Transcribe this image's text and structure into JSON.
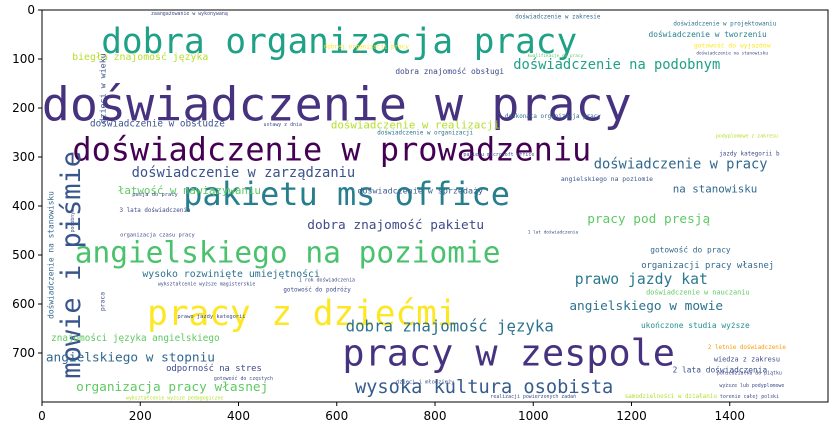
{
  "chart_data": {
    "type": "wordcloud",
    "xlim": [
      0,
      1600
    ],
    "ylim": [
      800,
      0
    ],
    "x_ticks": [
      0,
      200,
      400,
      600,
      800,
      1000,
      1200,
      1400
    ],
    "y_ticks": [
      0,
      100,
      200,
      300,
      400,
      500,
      600,
      700
    ],
    "x_tick_labels": [
      "0",
      "200",
      "400",
      "600",
      "800",
      "1000",
      "1200",
      "1400"
    ],
    "y_tick_labels": [
      "0",
      "100",
      "200",
      "300",
      "400",
      "500",
      "600",
      "700"
    ],
    "grid": false,
    "colormap": "viridis",
    "words": [
      {
        "text": "doświadczenie w pracy",
        "x": 600,
        "y": 195,
        "size": 95,
        "color": "#46327e",
        "rotate": 0
      },
      {
        "text": "dobra organizacja pracy",
        "x": 605,
        "y": 65,
        "size": 70,
        "color": "#1fa187",
        "rotate": 0
      },
      {
        "text": "doświadczenie w prowadzeniu",
        "x": 590,
        "y": 285,
        "size": 65,
        "color": "#440154",
        "rotate": 0
      },
      {
        "text": "pakietu ms office",
        "x": 620,
        "y": 375,
        "size": 65,
        "color": "#277f8e",
        "rotate": 0
      },
      {
        "text": "angielskiego na poziomie",
        "x": 500,
        "y": 495,
        "size": 60,
        "color": "#4ac16d",
        "rotate": 0
      },
      {
        "text": "pracy z dziećmi",
        "x": 530,
        "y": 620,
        "size": 70,
        "color": "#fde725",
        "rotate": 0
      },
      {
        "text": "pracy w zespole",
        "x": 950,
        "y": 700,
        "size": 75,
        "color": "#46327e",
        "rotate": 0
      },
      {
        "text": "mowie i piśmie",
        "x": 60,
        "y": 520,
        "size": 55,
        "color": "#39568c",
        "rotate": -90
      },
      {
        "text": "wysoka kultura osobista",
        "x": 900,
        "y": 770,
        "size": 38,
        "color": "#365c8d",
        "rotate": 0
      },
      {
        "text": "dobra znajomość języka",
        "x": 830,
        "y": 645,
        "size": 32,
        "color": "#2c728e",
        "rotate": 0
      },
      {
        "text": "doświadczenie na podobnym",
        "x": 1170,
        "y": 112,
        "size": 28,
        "color": "#1fa187",
        "rotate": 0
      },
      {
        "text": "doświadczenie w zarządzaniu",
        "x": 410,
        "y": 333,
        "size": 28,
        "color": "#3b528b",
        "rotate": 0
      },
      {
        "text": "doświadczenie w pracy",
        "x": 1300,
        "y": 315,
        "size": 28,
        "color": "#31688e",
        "rotate": 0
      },
      {
        "text": "prawo jazdy kat",
        "x": 1220,
        "y": 550,
        "size": 30,
        "color": "#2a788e",
        "rotate": 0
      },
      {
        "text": "angielskiego w mowie",
        "x": 1230,
        "y": 605,
        "size": 26,
        "color": "#2c728e",
        "rotate": 0
      },
      {
        "text": "angielskiego w stopniu",
        "x": 180,
        "y": 710,
        "size": 26,
        "color": "#31688e",
        "rotate": 0
      },
      {
        "text": "organizacja pracy własnej",
        "x": 265,
        "y": 770,
        "size": 26,
        "color": "#5ec962",
        "rotate": 0
      },
      {
        "text": "dobra znajomość pakietu",
        "x": 720,
        "y": 440,
        "size": 26,
        "color": "#3e4a89",
        "rotate": 0
      },
      {
        "text": "pracy pod presją",
        "x": 1235,
        "y": 428,
        "size": 26,
        "color": "#5ec962",
        "rotate": 0
      },
      {
        "text": "na stanowisku",
        "x": 1370,
        "y": 365,
        "size": 22,
        "color": "#31688e",
        "rotate": 0
      },
      {
        "text": "doświadczenie w realizacji",
        "x": 760,
        "y": 235,
        "size": 22,
        "color": "#b5de2b",
        "rotate": 0
      },
      {
        "text": "łatwość w nawiązywaniu",
        "x": 300,
        "y": 368,
        "size": 22,
        "color": "#5ec962",
        "rotate": 0
      },
      {
        "text": "wysoko rozwinięte umiejętności",
        "x": 385,
        "y": 540,
        "size": 20,
        "color": "#2c728e",
        "rotate": 0
      },
      {
        "text": "doświadczenie w tworzeniu",
        "x": 1355,
        "y": 50,
        "size": 16,
        "color": "#277f8e",
        "rotate": 0
      },
      {
        "text": "biegła znajomość języka",
        "x": 200,
        "y": 97,
        "size": 20,
        "color": "#b5de2b",
        "rotate": 0
      },
      {
        "text": "doświadczenie w obsłudze",
        "x": 235,
        "y": 233,
        "size": 19,
        "color": "#3b528b",
        "rotate": 0
      },
      {
        "text": "znajomości języka angielskiego",
        "x": 190,
        "y": 670,
        "size": 19,
        "color": "#5ec962",
        "rotate": 0
      },
      {
        "text": "organizacji pracy własnej",
        "x": 1355,
        "y": 522,
        "size": 18,
        "color": "#31688e",
        "rotate": 0
      },
      {
        "text": "odporność na stres",
        "x": 350,
        "y": 733,
        "size": 18,
        "color": "#3e4a89",
        "rotate": 0
      },
      {
        "text": "dzieci w wieku",
        "x": 123,
        "y": 160,
        "size": 17,
        "color": "#3b528b",
        "rotate": -90
      },
      {
        "text": "doświadczenie w sprzedaży",
        "x": 770,
        "y": 368,
        "size": 17,
        "color": "#365c8d",
        "rotate": 0
      },
      {
        "text": "doświadczenie na stanowisku",
        "x": 18,
        "y": 500,
        "size": 16,
        "color": "#31688e",
        "rotate": -90
      },
      {
        "text": "gotowość do pracy",
        "x": 1320,
        "y": 490,
        "size": 16,
        "color": "#31688e",
        "rotate": 0
      },
      {
        "text": "dobra znajomość obsługi",
        "x": 830,
        "y": 125,
        "size": 16,
        "color": "#3e4a89",
        "rotate": 0
      },
      {
        "text": "ukończone studia wyższe",
        "x": 1330,
        "y": 644,
        "size": 16,
        "color": "#21918c",
        "rotate": 0
      },
      {
        "text": "2 lata doświadczenia",
        "x": 1380,
        "y": 735,
        "size": 16,
        "color": "#3b528b",
        "rotate": 0
      },
      {
        "text": "wiedza z zakresu",
        "x": 1435,
        "y": 713,
        "size": 14,
        "color": "#3e4a89",
        "rotate": 0
      },
      {
        "text": "gotowość do wyjazdów",
        "x": 1405,
        "y": 72,
        "size": 13,
        "color": "#fde725",
        "rotate": 0
      },
      {
        "text": "doświadczenie w zakresie",
        "x": 1050,
        "y": 15,
        "size": 12,
        "color": "#31688e",
        "rotate": 0
      },
      {
        "text": "doświadczenie w nauczaniu",
        "x": 1335,
        "y": 577,
        "size": 14,
        "color": "#5ec962",
        "rotate": 0
      },
      {
        "text": "doświadczenie w organizacji",
        "x": 780,
        "y": 252,
        "size": 12,
        "color": "#2c728e",
        "rotate": 0
      },
      {
        "text": "angielskiego na poziomie",
        "x": 1150,
        "y": 345,
        "size": 13,
        "color": "#3b528b",
        "rotate": 0
      },
      {
        "text": "jazdy kategorii b",
        "x": 1440,
        "y": 295,
        "size": 12,
        "color": "#3e4a89",
        "rotate": 0
      },
      {
        "text": "doskonała organizacja pracy",
        "x": 1040,
        "y": 218,
        "size": 12,
        "color": "#31688e",
        "rotate": 0
      },
      {
        "text": "doświadczenie w projektowaniu",
        "x": 1390,
        "y": 30,
        "size": 12,
        "color": "#2c728e",
        "rotate": 0
      },
      {
        "text": "dobrej organizacji pracy",
        "x": 660,
        "y": 77,
        "size": 12,
        "color": "#fde725",
        "rotate": 0
      },
      {
        "text": "organizacja czasu pracy",
        "x": 235,
        "y": 460,
        "size": 11,
        "color": "#3e4a89",
        "rotate": 0
      },
      {
        "text": "3 lata doświadczenia",
        "x": 230,
        "y": 410,
        "size": 12,
        "color": "#3e4a89",
        "rotate": 0
      },
      {
        "text": "pasja do pracy",
        "x": 230,
        "y": 378,
        "size": 11,
        "color": "#3e4a89",
        "rotate": 0
      },
      {
        "text": "gotowość do podróży",
        "x": 560,
        "y": 572,
        "size": 12,
        "color": "#3e4a89",
        "rotate": 0
      },
      {
        "text": "2 letnie doświadczenie",
        "x": 1435,
        "y": 690,
        "size": 12,
        "color": "#fb9a06",
        "rotate": 0
      },
      {
        "text": "dzieci i młodzieży",
        "x": 780,
        "y": 760,
        "size": 11,
        "color": "#3b528b",
        "rotate": 0
      },
      {
        "text": "realizacji powierzonych zadań",
        "x": 1000,
        "y": 790,
        "size": 10,
        "color": "#3e4a89",
        "rotate": 0
      },
      {
        "text": "samodzielności w działaniu",
        "x": 1280,
        "y": 790,
        "size": 12,
        "color": "#b5de2b",
        "rotate": 0
      },
      {
        "text": "wykształcenie wyższe pedagogiczne",
        "x": 270,
        "y": 793,
        "size": 10,
        "color": "#b5de2b",
        "rotate": 0
      },
      {
        "text": "prawo jazdy kategorii",
        "x": 345,
        "y": 627,
        "size": 11,
        "color": "#3e4a89",
        "rotate": 0
      },
      {
        "text": "wykształcenie wyższe magisterskie",
        "x": 335,
        "y": 560,
        "size": 10,
        "color": "#3e4a89",
        "rotate": 0
      },
      {
        "text": "1 rok doświadczenia",
        "x": 580,
        "y": 552,
        "size": 10,
        "color": "#3e4a89",
        "rotate": 0
      },
      {
        "text": "gotowość do częstych",
        "x": 410,
        "y": 753,
        "size": 10,
        "color": "#3e4a89",
        "rotate": 0
      },
      {
        "text": "zaangażowanie w wykonywaną",
        "x": 300,
        "y": 8,
        "size": 10,
        "color": "#3e4a89",
        "rotate": 0
      },
      {
        "text": "kwalifikacje do pracy",
        "x": 1045,
        "y": 95,
        "size": 9,
        "color": "#5ec962",
        "rotate": 0
      },
      {
        "text": "doświadczenie na stanowisku",
        "x": 1405,
        "y": 90,
        "size": 9,
        "color": "#3e4a89",
        "rotate": 0
      },
      {
        "text": "pakietu microsoft office",
        "x": 930,
        "y": 296,
        "size": 10,
        "color": "#3e4a89",
        "rotate": 0
      },
      {
        "text": "1 lat doświadczenia",
        "x": 1040,
        "y": 455,
        "size": 9,
        "color": "#3e4a89",
        "rotate": 0
      },
      {
        "text": "poniedziałku do piątku",
        "x": 1440,
        "y": 742,
        "size": 10,
        "color": "#3e4a89",
        "rotate": 0
      },
      {
        "text": "torenie całej polski",
        "x": 1440,
        "y": 790,
        "size": 10,
        "color": "#3e4a89",
        "rotate": 0
      },
      {
        "text": "wyższe lub podyplomowe",
        "x": 1445,
        "y": 767,
        "size": 10,
        "color": "#3e4a89",
        "rotate": 0
      },
      {
        "text": "podyplomowe z zakresu",
        "x": 1435,
        "y": 258,
        "size": 10,
        "color": "#b5de2b",
        "rotate": 0
      },
      {
        "text": "praca",
        "x": 123,
        "y": 595,
        "size": 13,
        "color": "#3e4a89",
        "rotate": -90
      },
      {
        "text": "podobnym",
        "x": 63,
        "y": 430,
        "size": 10,
        "color": "#3e4a89",
        "rotate": -90
      },
      {
        "text": "ustawy z dnia",
        "x": 490,
        "y": 235,
        "size": 10,
        "color": "#3e4a89",
        "rotate": 0
      }
    ]
  }
}
